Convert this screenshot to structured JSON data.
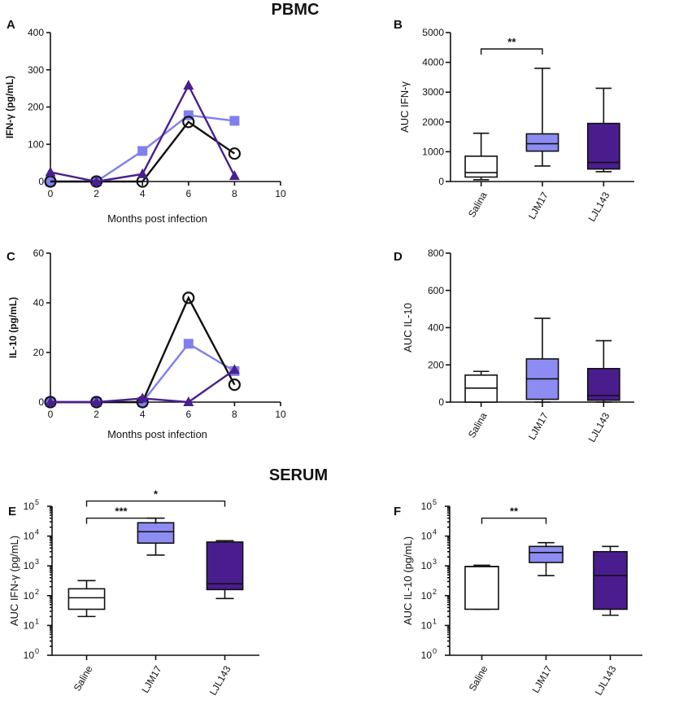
{
  "figure": {
    "section_pbmc": "PBMC",
    "section_serum": "SERUM"
  },
  "colors": {
    "saline": "#ffffff",
    "ljm17": "#8c8cf2",
    "ljl143": "#4a1d8f",
    "line_saline": "#111111",
    "line_ljm17": "#7f7ff0",
    "line_ljl143": "#4b1f8e"
  },
  "chart_data": [
    {
      "panel": "A",
      "type": "line",
      "title": "",
      "xlabel": "Months post infection",
      "ylabel": "IFN-γ (pg/mL)",
      "xlim": [
        0,
        10
      ],
      "ylim": [
        0,
        400
      ],
      "xticks": [
        "0",
        "2",
        "4",
        "6",
        "8",
        "10"
      ],
      "yticks": [
        "0",
        "100",
        "200",
        "300",
        "400"
      ],
      "x": [
        0,
        2,
        4,
        6,
        8
      ],
      "series": [
        {
          "name": "Saline",
          "marker": "circle",
          "values": [
            0,
            0,
            0,
            160,
            75
          ]
        },
        {
          "name": "LJM17",
          "marker": "square",
          "values": [
            0,
            0,
            82,
            178,
            163
          ]
        },
        {
          "name": "LJL143",
          "marker": "triangle",
          "values": [
            25,
            0,
            20,
            258,
            15
          ]
        }
      ]
    },
    {
      "panel": "B",
      "type": "box",
      "title": "",
      "xlabel": "",
      "ylabel": "AUC IFN-γ",
      "ylim": [
        0,
        5000
      ],
      "yticks": [
        "0",
        "1000",
        "2000",
        "3000",
        "4000",
        "5000"
      ],
      "categories": [
        "Salina",
        "LJM17",
        "LJL143"
      ],
      "boxes": [
        {
          "name": "Salina",
          "min": 60,
          "q1": 150,
          "median": 300,
          "q3": 850,
          "max": 1620
        },
        {
          "name": "LJM17",
          "min": 520,
          "q1": 1020,
          "median": 1270,
          "q3": 1600,
          "max": 3800
        },
        {
          "name": "LJL143",
          "min": 330,
          "q1": 420,
          "median": 640,
          "q3": 1950,
          "max": 3130
        }
      ],
      "significance": [
        {
          "from": "Salina",
          "to": "LJM17",
          "label": "**",
          "at": 4450
        }
      ]
    },
    {
      "panel": "C",
      "type": "line",
      "title": "",
      "xlabel": "Months post infection",
      "ylabel": "IL-10 (pg/mL)",
      "xlim": [
        0,
        10
      ],
      "ylim": [
        0,
        60
      ],
      "xticks": [
        "0",
        "2",
        "4",
        "6",
        "8",
        "10"
      ],
      "yticks": [
        "0",
        "20",
        "40",
        "60"
      ],
      "x": [
        0,
        2,
        4,
        6,
        8
      ],
      "series": [
        {
          "name": "Saline",
          "marker": "circle",
          "values": [
            0,
            0,
            0,
            42,
            7
          ]
        },
        {
          "name": "LJM17",
          "marker": "square",
          "values": [
            0,
            0,
            0,
            23.5,
            12.5
          ]
        },
        {
          "name": "LJL143",
          "marker": "triangle",
          "values": [
            0,
            0,
            1.5,
            0,
            13
          ]
        }
      ]
    },
    {
      "panel": "D",
      "type": "box",
      "title": "",
      "xlabel": "",
      "ylabel": "AUC IL-10",
      "ylim": [
        0,
        800
      ],
      "yticks": [
        "0",
        "200",
        "400",
        "600",
        "800"
      ],
      "categories": [
        "Salina",
        "LJM17",
        "LJL143"
      ],
      "boxes": [
        {
          "name": "Salina",
          "min": 0,
          "q1": 0,
          "median": 75,
          "q3": 145,
          "max": 165
        },
        {
          "name": "LJM17",
          "min": 0,
          "q1": 15,
          "median": 125,
          "q3": 232,
          "max": 450
        },
        {
          "name": "LJL143",
          "min": 0,
          "q1": 10,
          "median": 35,
          "q3": 180,
          "max": 330
        }
      ],
      "significance": []
    },
    {
      "panel": "E",
      "type": "box",
      "scale": "log",
      "title": "",
      "xlabel": "",
      "ylabel": "AUC IFN-γ (pg/mL)",
      "ylim_exp": [
        0,
        5
      ],
      "yticks": [
        "10^0",
        "10^1",
        "10^2",
        "10^3",
        "10^4",
        "10^5"
      ],
      "categories": [
        "Saline",
        "LJM17",
        "LJL143"
      ],
      "boxes": [
        {
          "name": "Saline",
          "min": 20,
          "q1": 35,
          "median": 85,
          "q3": 170,
          "max": 320
        },
        {
          "name": "LJM17",
          "min": 2300,
          "q1": 5800,
          "median": 14000,
          "q3": 28000,
          "max": 40000
        },
        {
          "name": "LJL143",
          "min": 80,
          "q1": 160,
          "median": 250,
          "q3": 6300,
          "max": 7000
        }
      ],
      "significance": [
        {
          "from": "Saline",
          "to": "LJM17",
          "label": "***",
          "at": 40000
        },
        {
          "from": "Saline",
          "to": "LJL143",
          "label": "*",
          "at": 150000
        }
      ]
    },
    {
      "panel": "F",
      "type": "box",
      "scale": "log",
      "title": "",
      "xlabel": "",
      "ylabel": "AUC IL-10 (pg/mL)",
      "ylim_exp": [
        0,
        5
      ],
      "yticks": [
        "10^0",
        "10^1",
        "10^2",
        "10^3",
        "10^4",
        "10^5"
      ],
      "categories": [
        "Saline",
        "LJM17",
        "LJL143"
      ],
      "boxes": [
        {
          "name": "Saline",
          "min": 35,
          "q1": 35,
          "median": 950,
          "q3": 950,
          "max": 1050
        },
        {
          "name": "LJM17",
          "min": 470,
          "q1": 1300,
          "median": 2800,
          "q3": 4500,
          "max": 6000
        },
        {
          "name": "LJL143",
          "min": 22,
          "q1": 35,
          "median": 470,
          "q3": 3000,
          "max": 4500
        }
      ],
      "significance": [
        {
          "from": "Saline",
          "to": "LJM17",
          "label": "**",
          "at": 40000
        }
      ]
    }
  ]
}
